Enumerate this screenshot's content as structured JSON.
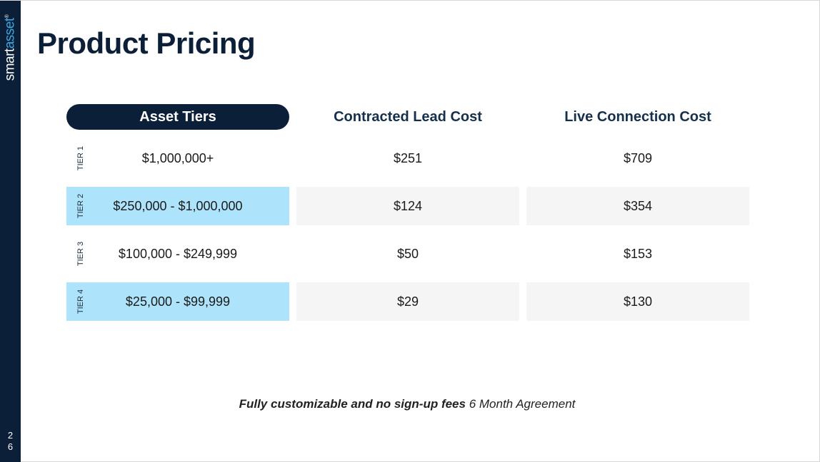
{
  "brand": {
    "smart": "smart",
    "asset": "asset",
    "tm": "®"
  },
  "page_number": "26",
  "title": "Product Pricing",
  "table": {
    "headers": [
      "Asset Tiers",
      "Contracted Lead Cost",
      "Live Connection Cost"
    ],
    "rows": [
      {
        "tier": "TIER 1",
        "range": "$1,000,000+",
        "lead_cost": "$251",
        "live_cost": "$709"
      },
      {
        "tier": "TIER 2",
        "range": "$250,000 - $1,000,000",
        "lead_cost": "$124",
        "live_cost": "$354"
      },
      {
        "tier": "TIER 3",
        "range": "$100,000 - $249,999",
        "lead_cost": "$50",
        "live_cost": "$153"
      },
      {
        "tier": "TIER 4",
        "range": "$25,000 - $99,999",
        "lead_cost": "$29",
        "live_cost": "$130"
      }
    ]
  },
  "footnote": {
    "bold": "Fully customizable and no sign-up fees",
    "regular": "6 Month Agreement"
  },
  "colors": {
    "navy": "#0b2038",
    "brand_blue": "#3aa7e0",
    "tier_highlight": "#aee4fb",
    "cell_gray": "#f5f5f5"
  }
}
